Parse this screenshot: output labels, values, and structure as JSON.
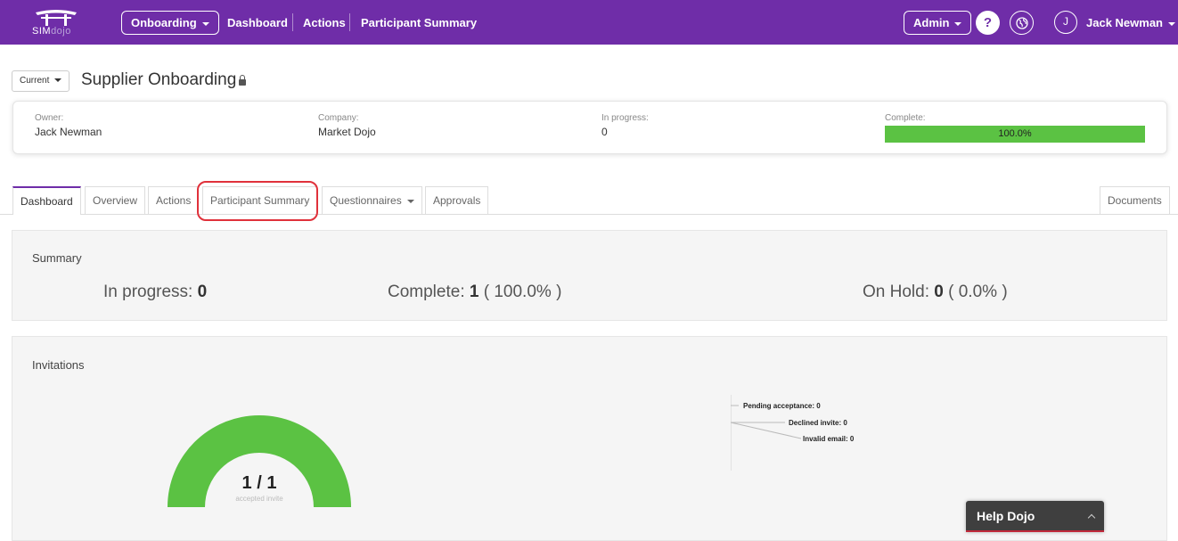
{
  "topbar": {
    "logo_text_1": "SIM",
    "logo_text_2": "dojo",
    "module_select": "Onboarding",
    "nav_links": [
      "Dashboard",
      "Actions",
      "Participant Summary"
    ],
    "admin_select": "Admin",
    "help_label": "?",
    "avatar_initial": "J",
    "user_name": "Jack Newman",
    "brand_color": "#6f2da8"
  },
  "header": {
    "version_select": "Current",
    "title": "Supplier Onboarding"
  },
  "info": {
    "owner_label": "Owner:",
    "owner_value": "Jack Newman",
    "company_label": "Company:",
    "company_value": "Market Dojo",
    "in_progress_label": "In progress:",
    "in_progress_value": "0",
    "complete_label": "Complete:",
    "complete_value": "100.0%",
    "complete_fraction": 1.0,
    "complete_color": "#5bc243"
  },
  "tabs": {
    "dashboard": "Dashboard",
    "overview": "Overview",
    "actions": "Actions",
    "participant_summary": "Participant Summary",
    "questionnaires": "Questionnaires",
    "approvals": "Approvals",
    "documents": "Documents",
    "active": "Dashboard",
    "highlighted": "Participant Summary",
    "highlight_color": "#e0313b"
  },
  "summary": {
    "title": "Summary",
    "in_progress_label": "In progress:",
    "in_progress_value": "0",
    "complete_label": "Complete:",
    "complete_value": "1",
    "complete_pct": "( 100.0% )",
    "on_hold_label": "On Hold:",
    "on_hold_value": "0",
    "on_hold_pct": "( 0.0% )"
  },
  "invitations": {
    "title": "Invitations",
    "gauge_value": "1 / 1",
    "gauge_caption": "accepted invite",
    "gauge_accepted": 1,
    "gauge_total": 1,
    "gauge_color": "#5bc243",
    "legend": [
      "Pending acceptance: 0",
      "Declined invite: 0",
      "Invalid email: 0"
    ]
  },
  "help_widget": {
    "label": "Help Dojo"
  }
}
